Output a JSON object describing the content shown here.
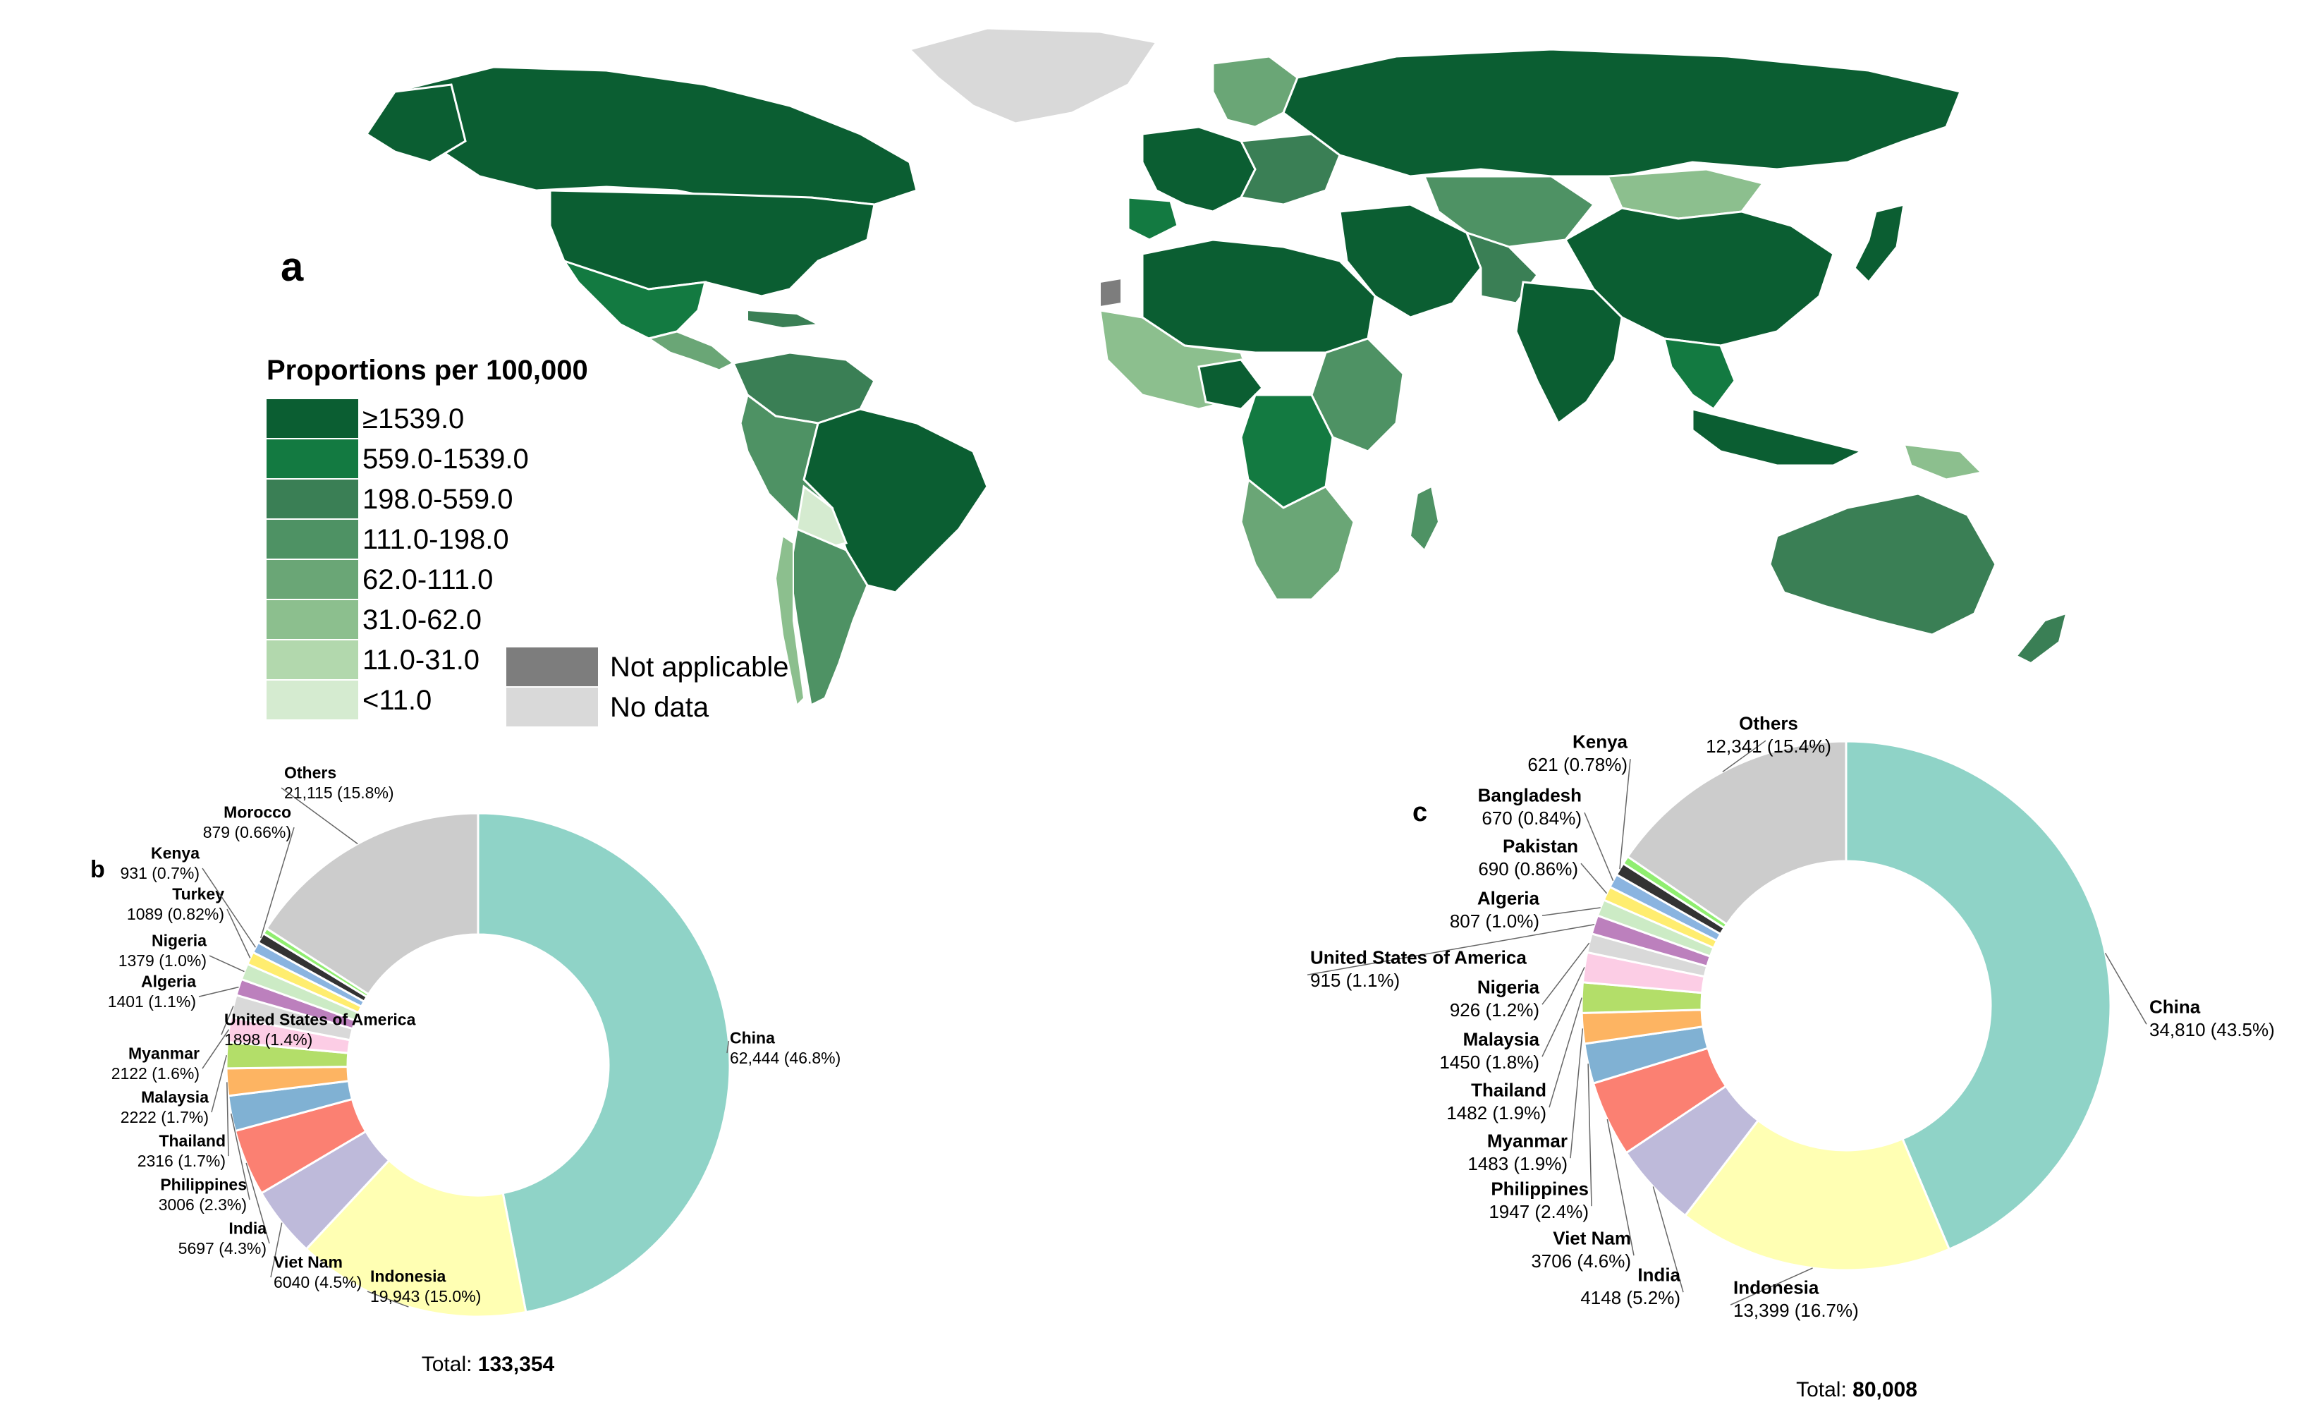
{
  "panels": {
    "a": "a",
    "b": "b",
    "c": "c"
  },
  "map_legend": {
    "title": "Proportions per 100,000",
    "bins": [
      {
        "label": "≥1539.0",
        "color": "#0b5e32"
      },
      {
        "label": "559.0-1539.0",
        "color": "#137a41"
      },
      {
        "label": "198.0-559.0",
        "color": "#3a7f55"
      },
      {
        "label": "111.0-198.0",
        "color": "#4e9264"
      },
      {
        "label": "62.0-111.0",
        "color": "#6aa676"
      },
      {
        "label": "31.0-62.0",
        "color": "#8cbf8e"
      },
      {
        "label": "11.0-31.0",
        "color": "#b2d8ad"
      },
      {
        "label": "<11.0",
        "color": "#d5ebd0"
      }
    ],
    "special": [
      {
        "label": "Not applicable",
        "color": "#7d7d7d"
      },
      {
        "label": "No data",
        "color": "#d9d9d9"
      }
    ]
  },
  "chart_data": [
    {
      "type": "pie",
      "panel": "b",
      "donut": true,
      "total_label": "Total:",
      "total_value": "133,354",
      "slices": [
        {
          "name": "China",
          "value": 62444,
          "text": "62,444  (46.8%)",
          "color": "#8fd3c7"
        },
        {
          "name": "Indonesia",
          "value": 19943,
          "text": "19,943 (15.0%)",
          "color": "#ffffb3"
        },
        {
          "name": "Viet Nam",
          "value": 6040,
          "text": "6040 (4.5%)",
          "color": "#bebada"
        },
        {
          "name": "India",
          "value": 5697,
          "text": "5697 (4.3%)",
          "color": "#fb8072"
        },
        {
          "name": "Philippines",
          "value": 3006,
          "text": "3006 (2.3%)",
          "color": "#80b1d3"
        },
        {
          "name": "Thailand",
          "value": 2316,
          "text": "2316 (1.7%)",
          "color": "#fdb462"
        },
        {
          "name": "Malaysia",
          "value": 2222,
          "text": "2222 (1.7%)",
          "color": "#b3de69"
        },
        {
          "name": "Myanmar",
          "value": 2122,
          "text": "2122 (1.6%)",
          "color": "#fccde5"
        },
        {
          "name": "United States of America",
          "value": 1898,
          "text": "1898 (1.4%)",
          "color": "#d9d9d9"
        },
        {
          "name": "Algeria",
          "value": 1401,
          "text": "1401 (1.1%)",
          "color": "#bc80bd"
        },
        {
          "name": "Nigeria",
          "value": 1379,
          "text": "1379 (1.0%)",
          "color": "#ccebc5"
        },
        {
          "name": "Turkey",
          "value": 1089,
          "text": "1089 (0.82%)",
          "color": "#ffed6f"
        },
        {
          "name": "Kenya",
          "value": 931,
          "text": "931 (0.7%)",
          "color": "#8ab4e0"
        },
        {
          "name": "Morocco",
          "value": 879,
          "text": "879 (0.66%)",
          "color": "#333333"
        },
        {
          "name": "",
          "value": 500,
          "text": "",
          "color": "#90ee70"
        },
        {
          "name": "Others",
          "value": 21115,
          "text": "21,115 (15.8%)",
          "color": "#cccccc"
        }
      ]
    },
    {
      "type": "pie",
      "panel": "c",
      "donut": true,
      "total_label": "Total:",
      "total_value": "80,008",
      "slices": [
        {
          "name": "China",
          "value": 34810,
          "text": "34,810  (43.5%)",
          "color": "#8fd3c7"
        },
        {
          "name": "Indonesia",
          "value": 13399,
          "text": "13,399 (16.7%)",
          "color": "#ffffb3"
        },
        {
          "name": "India",
          "value": 4148,
          "text": "4148 (5.2%)",
          "color": "#bebada"
        },
        {
          "name": "Viet Nam",
          "value": 3706,
          "text": "3706 (4.6%)",
          "color": "#fb8072"
        },
        {
          "name": "Philippines",
          "value": 1947,
          "text": "1947 (2.4%)",
          "color": "#80b1d3"
        },
        {
          "name": "Myanmar",
          "value": 1483,
          "text": "1483 (1.9%)",
          "color": "#fdb462"
        },
        {
          "name": "Thailand",
          "value": 1482,
          "text": "1482 (1.9%)",
          "color": "#b3de69"
        },
        {
          "name": "Malaysia",
          "value": 1450,
          "text": "1450 (1.8%)",
          "color": "#fccde5"
        },
        {
          "name": "Nigeria",
          "value": 926,
          "text": "926 (1.2%)",
          "color": "#d9d9d9"
        },
        {
          "name": "United States of America",
          "value": 915,
          "text": "915 (1.1%)",
          "color": "#bc80bd"
        },
        {
          "name": "Algeria",
          "value": 807,
          "text": "807 (1.0%)",
          "color": "#ccebc5"
        },
        {
          "name": "Pakistan",
          "value": 690,
          "text": "690 (0.86%)",
          "color": "#ffed6f"
        },
        {
          "name": "Bangladesh",
          "value": 670,
          "text": "670 (0.84%)",
          "color": "#8ab4e0"
        },
        {
          "name": "Kenya",
          "value": 621,
          "text": "621 (0.78%)",
          "color": "#333333"
        },
        {
          "name": "",
          "value": 400,
          "text": "",
          "color": "#90ee70"
        },
        {
          "name": "Others",
          "value": 12341,
          "text": "12,341 (15.4%)",
          "color": "#cccccc"
        }
      ]
    }
  ]
}
